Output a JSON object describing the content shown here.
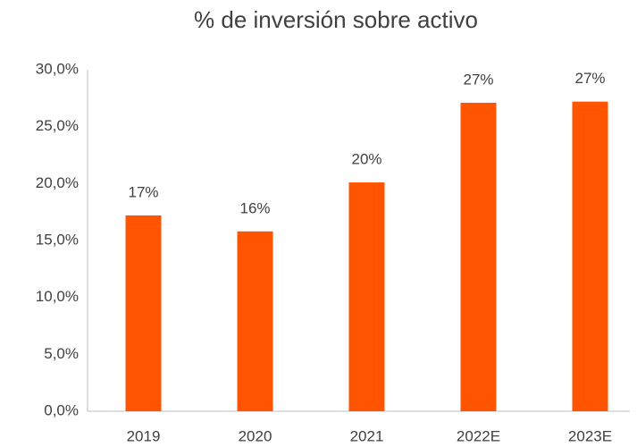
{
  "chart_data": {
    "type": "bar",
    "title": "% de inversión sobre activo",
    "categories": [
      "2019",
      "2020",
      "2021",
      "2022E",
      "2023E"
    ],
    "values": [
      17.2,
      15.8,
      20.1,
      27.1,
      27.2
    ],
    "value_labels": [
      "17%",
      "16%",
      "20%",
      "27%",
      "27%"
    ],
    "color": "#ff5500",
    "ylim": [
      0,
      30
    ],
    "yticks": [
      {
        "value": 0,
        "label": "0,0%"
      },
      {
        "value": 5,
        "label": "5,0%"
      },
      {
        "value": 10,
        "label": "10,0%"
      },
      {
        "value": 15,
        "label": "15,0%"
      },
      {
        "value": 20,
        "label": "20,0%"
      },
      {
        "value": 25,
        "label": "25,0%"
      },
      {
        "value": 30,
        "label": "30,0%"
      }
    ],
    "grid": false
  }
}
